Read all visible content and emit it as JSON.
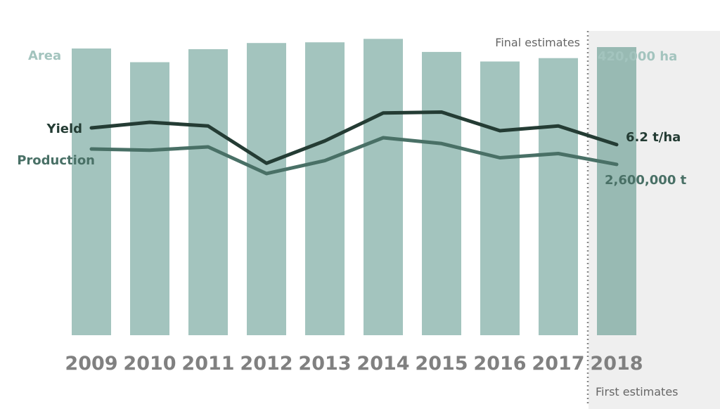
{
  "chart_data": {
    "type": "bar",
    "categories": [
      "2009",
      "2010",
      "2011",
      "2012",
      "2013",
      "2014",
      "2015",
      "2016",
      "2017",
      "2018"
    ],
    "series": [
      {
        "name": "Area",
        "kind": "bar",
        "values": [
          418000,
          398000,
          417000,
          426000,
          427000,
          432000,
          413000,
          399000,
          404000,
          420000
        ],
        "end_label": "420,000 ha",
        "color": "#a3c4be"
      },
      {
        "name": "Yield",
        "kind": "line",
        "values": [
          7.1,
          7.4,
          7.2,
          5.2,
          6.4,
          7.9,
          7.95,
          6.95,
          7.2,
          6.2
        ],
        "end_label": "6.2 t/ha",
        "color": "#243c34"
      },
      {
        "name": "Production",
        "kind": "line",
        "values": [
          2970000,
          2940000,
          3020000,
          2380000,
          2690000,
          3240000,
          3100000,
          2760000,
          2860000,
          2600000
        ],
        "end_label": "2,600,000 t",
        "color": "#497066"
      }
    ],
    "annotations": {
      "final_estimates": "Final estimates",
      "first_estimates": "First estimates"
    },
    "grid": false,
    "legend": "inline-left"
  }
}
